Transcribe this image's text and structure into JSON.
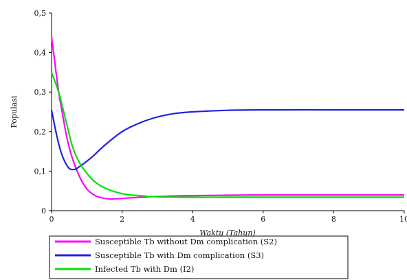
{
  "chart_data": {
    "type": "line",
    "xlabel": "Waktu (Tahun)",
    "ylabel": "Populasi",
    "xlim": [
      0,
      10
    ],
    "ylim": [
      0,
      0.5
    ],
    "x_ticks": [
      "0",
      "2",
      "4",
      "6",
      "8",
      "10"
    ],
    "y_ticks": [
      "0",
      "0,1",
      "0,2",
      "0,3",
      "0,4",
      "0,5"
    ],
    "grid": false,
    "legend_position": "bottom",
    "series": [
      {
        "name": "Susceptible Tb without Dm complication",
        "symbol": "(S2)",
        "color": "#ff00ff",
        "x": [
          0,
          0.1,
          0.2,
          0.3,
          0.4,
          0.5,
          0.6,
          0.8,
          1.0,
          1.2,
          1.4,
          1.6,
          1.8,
          2.0,
          2.5,
          3.0,
          4.0,
          5.0,
          6.0,
          8.0,
          10.0
        ],
        "y": [
          0.44,
          0.37,
          0.3,
          0.25,
          0.2,
          0.16,
          0.13,
          0.085,
          0.055,
          0.04,
          0.033,
          0.03,
          0.03,
          0.031,
          0.034,
          0.036,
          0.038,
          0.039,
          0.04,
          0.04,
          0.04
        ]
      },
      {
        "name": "Susceptible Tb with Dm complication",
        "symbol": "(S3)",
        "color": "#2020e0",
        "x": [
          0,
          0.1,
          0.2,
          0.3,
          0.4,
          0.5,
          0.6,
          0.7,
          0.8,
          1.0,
          1.2,
          1.5,
          2.0,
          2.5,
          3.0,
          3.5,
          4.0,
          5.0,
          6.0,
          8.0,
          10.0
        ],
        "y": [
          0.255,
          0.21,
          0.17,
          0.14,
          0.12,
          0.107,
          0.104,
          0.106,
          0.112,
          0.125,
          0.14,
          0.165,
          0.2,
          0.222,
          0.237,
          0.246,
          0.25,
          0.254,
          0.255,
          0.255,
          0.255
        ]
      },
      {
        "name": "Infected Tb with Dm",
        "symbol": "(I2)",
        "color": "#00e000",
        "x": [
          0,
          0.2,
          0.4,
          0.6,
          0.8,
          1.0,
          1.2,
          1.5,
          2.0,
          2.5,
          3.0,
          4.0,
          5.0,
          6.0,
          8.0,
          10.0
        ],
        "y": [
          0.35,
          0.3,
          0.23,
          0.16,
          0.12,
          0.095,
          0.075,
          0.058,
          0.043,
          0.038,
          0.035,
          0.034,
          0.034,
          0.034,
          0.034,
          0.034
        ]
      }
    ]
  }
}
